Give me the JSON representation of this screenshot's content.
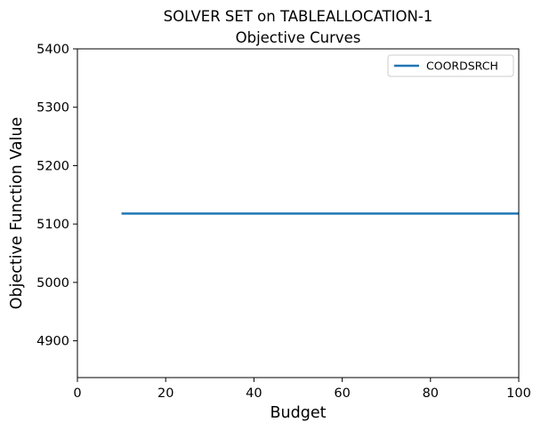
{
  "chart_data": {
    "type": "line",
    "title": "SOLVER SET on TABLEALLOCATION-1",
    "subtitle": "Objective Curves",
    "xlabel": "Budget",
    "ylabel": "Objective Function Value",
    "xlim": [
      0,
      100
    ],
    "ylim": [
      4837,
      5400
    ],
    "xticks": [
      0,
      20,
      40,
      60,
      80,
      100
    ],
    "yticks": [
      4900,
      5000,
      5100,
      5200,
      5300,
      5400
    ],
    "grid": false,
    "legend_position": "top-right",
    "series": [
      {
        "name": "COORDSRCH",
        "color": "#1f77b4",
        "x": [
          10,
          100
        ],
        "y": [
          5118,
          5118
        ]
      }
    ]
  }
}
